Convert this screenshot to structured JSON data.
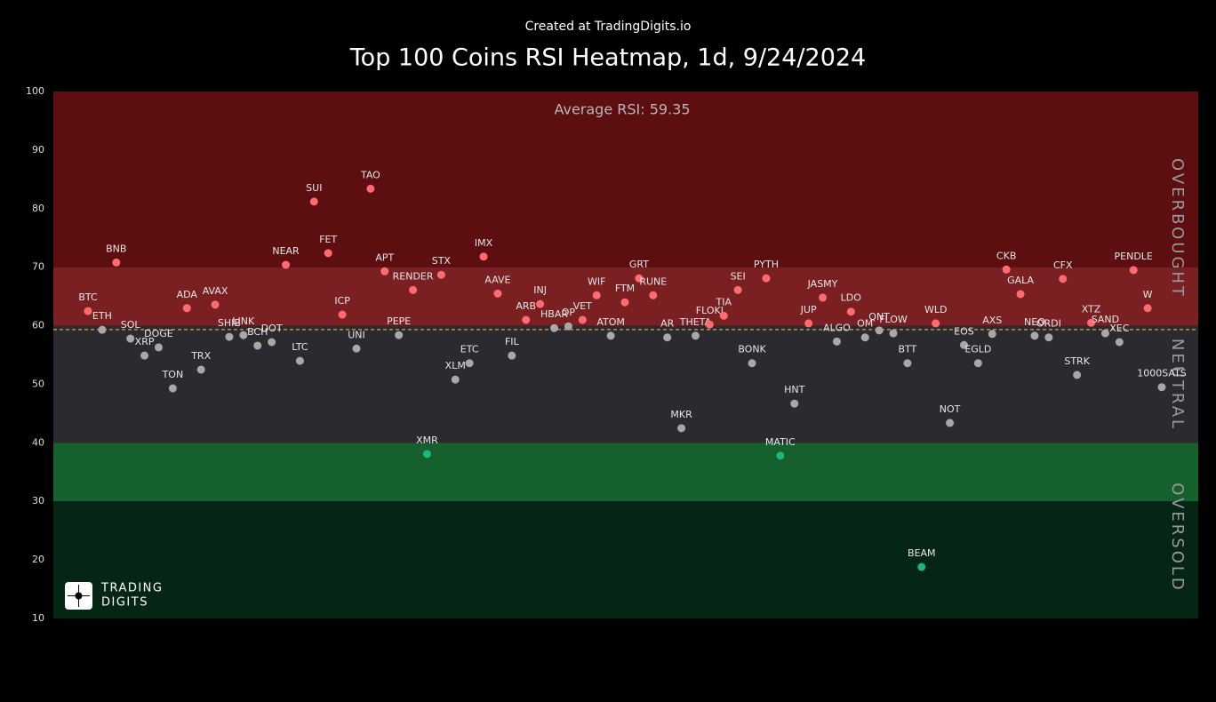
{
  "chart_data": {
    "type": "scatter",
    "credit": "Created at TradingDigits.io",
    "title": "Top 100 Coins RSI Heatmap, 1d, 9/24/2024",
    "average": 59.35,
    "average_label": "Average RSI: 59.35",
    "ylim": [
      10,
      100
    ],
    "yticks": [
      10,
      20,
      30,
      40,
      50,
      60,
      70,
      80,
      90,
      100
    ],
    "bands": [
      {
        "from": 70,
        "to": 100,
        "color": "#5c0e11"
      },
      {
        "from": 60,
        "to": 70,
        "color": "#7a2023"
      },
      {
        "from": 40,
        "to": 60,
        "color": "#2a2a30"
      },
      {
        "from": 30,
        "to": 40,
        "color": "#16602e"
      },
      {
        "from": 10,
        "to": 30,
        "color": "#062615"
      }
    ],
    "zone_labels": [
      "OVERBOUGHT",
      "NEUTRAL",
      "OVERSOLD"
    ],
    "point_colors": {
      "high": "#ff6b6e",
      "mid": "#a8a8a8",
      "low": "#1db57c",
      "high_from": 60,
      "low_to": 40
    },
    "logo": [
      "TRADING",
      "DIGITS"
    ],
    "categories": [
      "BTC",
      "ETH",
      "BNB",
      "SOL",
      "XRP",
      "DOGE",
      "TON",
      "ADA",
      "TRX",
      "AVAX",
      "SHIB",
      "LINK",
      "BCH",
      "DOT",
      "NEAR",
      "LTC",
      "SUI",
      "FET",
      "ICP",
      "UNI",
      "TAO",
      "APT",
      "PEPE",
      "RENDER",
      "XMR",
      "STX",
      "XLM",
      "ETC",
      "IMX",
      "AAVE",
      "FIL",
      "ARB",
      "INJ",
      "HBAR",
      "OP",
      "VET",
      "WIF",
      "ATOM",
      "FTM",
      "GRT",
      "RUNE",
      "AR",
      "MKR",
      "THETA",
      "FLOKI",
      "TIA",
      "SEI",
      "BONK",
      "PYTH",
      "MATIC",
      "HNT",
      "JUP",
      "JASMY",
      "ALGO",
      "LDO",
      "OM",
      "QNT",
      "FLOW",
      "BTT",
      "BEAM",
      "WLD",
      "NOT",
      "EOS",
      "EGLD",
      "AXS",
      "CKB",
      "GALA",
      "NEO",
      "ORDI",
      "CFX",
      "STRK",
      "XTZ",
      "SAND",
      "XEC",
      "PENDLE",
      "W",
      "1000SATS"
    ],
    "values": [
      62.5,
      59.3,
      70.8,
      57.8,
      54.9,
      56.3,
      49.3,
      63.0,
      52.5,
      63.6,
      58.1,
      58.4,
      56.6,
      57.2,
      70.4,
      54.0,
      81.2,
      72.4,
      61.9,
      56.1,
      83.4,
      69.3,
      58.4,
      66.1,
      38.1,
      68.7,
      50.8,
      53.6,
      71.8,
      65.5,
      54.9,
      61.0,
      63.7,
      59.6,
      59.9,
      61.0,
      65.2,
      58.3,
      64.0,
      68.1,
      65.2,
      58.0,
      42.5,
      58.3,
      60.2,
      61.7,
      66.1,
      53.6,
      68.1,
      37.8,
      46.7,
      60.4,
      64.8,
      57.3,
      62.4,
      58.0,
      59.2,
      58.7,
      53.6,
      18.8,
      60.4,
      43.4,
      56.7,
      53.6,
      58.6,
      69.6,
      65.4,
      58.3,
      58.0,
      68.0,
      51.6,
      60.5,
      58.7,
      57.2,
      69.5,
      63.0,
      49.5
    ]
  }
}
